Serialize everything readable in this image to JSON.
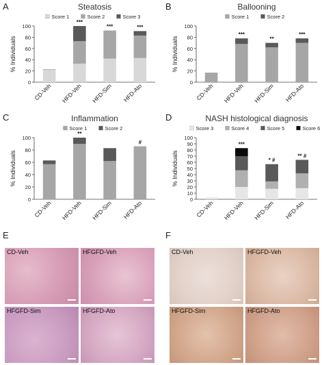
{
  "panels": {
    "A": "A",
    "B": "B",
    "C": "C",
    "D": "D",
    "E": "E",
    "F": "F"
  },
  "colors": {
    "score1": "#d8d8d8",
    "score2": "#a6a6a6",
    "score3": "#595959",
    "score3_nash": "#e6e6e6",
    "score4": "#b0b0b0",
    "score5": "#595959",
    "score6": "#0a0a0a",
    "he_stain": "#d8a0b8",
    "oro_stain": "#dcc4b8"
  },
  "chart_data": [
    {
      "id": "A",
      "type": "bar",
      "stacked": true,
      "title": "Steatosis",
      "ylabel": "% Individuals",
      "ylim": [
        0,
        100
      ],
      "yticks": [
        0,
        20,
        40,
        60,
        80,
        100
      ],
      "categories": [
        "CD-Veh",
        "HFD-Veh",
        "HFD-Sim",
        "HFD-Ato"
      ],
      "series": [
        {
          "name": "Score 1",
          "color": "#d8d8d8",
          "values": [
            22,
            33,
            42,
            43
          ]
        },
        {
          "name": "Score 2",
          "color": "#a6a6a6",
          "values": [
            1,
            40,
            50,
            40
          ]
        },
        {
          "name": "Score 3",
          "color": "#595959",
          "values": [
            0,
            27,
            0,
            8
          ]
        }
      ],
      "annotations": [
        "",
        "***",
        "***",
        "***"
      ],
      "legend_position": "top"
    },
    {
      "id": "B",
      "type": "bar",
      "stacked": true,
      "title": "Ballooning",
      "ylabel": "% Individuals",
      "ylim": [
        0,
        100
      ],
      "yticks": [
        0,
        20,
        40,
        60,
        80,
        100
      ],
      "categories": [
        "CD-Veh",
        "HFD-Veh",
        "HFD-Sim",
        "HFD-Ato"
      ],
      "series": [
        {
          "name": "Score 1",
          "color": "#a6a6a6",
          "values": [
            17,
            68,
            62,
            70
          ]
        },
        {
          "name": "Score 2",
          "color": "#595959",
          "values": [
            0,
            10,
            8,
            8
          ]
        }
      ],
      "annotations": [
        "",
        "***",
        "**",
        "***"
      ],
      "legend_position": "top"
    },
    {
      "id": "C",
      "type": "bar",
      "stacked": true,
      "title": "Inflammation",
      "ylabel": "% Individuals",
      "ylim": [
        0,
        100
      ],
      "yticks": [
        0,
        20,
        40,
        60,
        80,
        100
      ],
      "categories": [
        "CD-Veh",
        "HFD-Veh",
        "HFD-Sim",
        "HFD-Ato"
      ],
      "series": [
        {
          "name": "Score 1",
          "color": "#a6a6a6",
          "values": [
            57,
            90,
            62,
            86
          ]
        },
        {
          "name": "Score 2",
          "color": "#595959",
          "values": [
            6,
            10,
            21,
            0
          ]
        }
      ],
      "annotations": [
        "",
        "**",
        "",
        "#"
      ],
      "legend_position": "top"
    },
    {
      "id": "D",
      "type": "bar",
      "stacked": true,
      "title": "NASH histological diagnosis",
      "ylabel": "% Individuals",
      "ylim": [
        0,
        100
      ],
      "yticks": [
        0,
        10,
        20,
        30,
        40,
        50,
        60,
        70,
        80,
        90,
        100
      ],
      "categories": [
        "CD-Veh",
        "HFD-Veh",
        "HFD-Sim",
        "HFD-Ato"
      ],
      "series": [
        {
          "name": "Score 3",
          "color": "#e6e6e6",
          "values": [
            3,
            20,
            17,
            18
          ]
        },
        {
          "name": "Score 4",
          "color": "#b0b0b0",
          "values": [
            0,
            27,
            12,
            24
          ]
        },
        {
          "name": "Score 5",
          "color": "#595959",
          "values": [
            0,
            23,
            28,
            22
          ]
        },
        {
          "name": "Score 6",
          "color": "#0a0a0a",
          "values": [
            0,
            13,
            0,
            0
          ]
        }
      ],
      "annotations": [
        "",
        "***",
        "* #",
        "** #"
      ],
      "legend_position": "top"
    }
  ],
  "micrographs": {
    "E": [
      {
        "label": "CD-Veh"
      },
      {
        "label": "HFGFD-Veh"
      },
      {
        "label": "HFGFD-Sim"
      },
      {
        "label": "HFGFD-Ato"
      }
    ],
    "F": [
      {
        "label": "CD-Veh"
      },
      {
        "label": "HFGFD-Veh"
      },
      {
        "label": "HFGFD-Sim"
      },
      {
        "label": "HFGFD-Ato"
      }
    ]
  }
}
